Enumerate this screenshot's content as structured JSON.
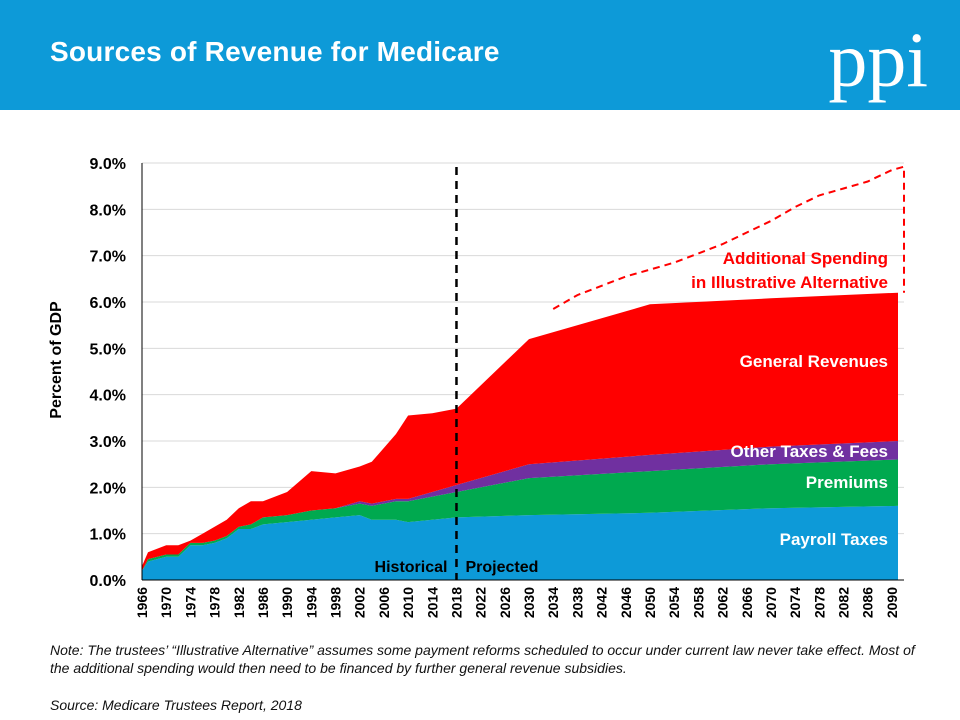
{
  "header": {
    "title": "Sources of Revenue for Medicare",
    "logo_text": "ppi"
  },
  "chart_data": {
    "type": "area",
    "stacked": true,
    "ylabel": "Percent of GDP",
    "ylim": [
      0,
      9
    ],
    "y_ticks": [
      "0.0%",
      "1.0%",
      "2.0%",
      "3.0%",
      "4.0%",
      "5.0%",
      "6.0%",
      "7.0%",
      "8.0%",
      "9.0%"
    ],
    "x_ticks": [
      "1966",
      "1970",
      "1974",
      "1978",
      "1982",
      "1986",
      "1990",
      "1994",
      "1998",
      "2002",
      "2006",
      "2010",
      "2014",
      "2018",
      "2022",
      "2026",
      "2030",
      "2034",
      "2038",
      "2042",
      "2046",
      "2050",
      "2054",
      "2058",
      "2062",
      "2066",
      "2070",
      "2074",
      "2078",
      "2082",
      "2086",
      "2090"
    ],
    "xlim": [
      1966,
      2092
    ],
    "divider_year": 2018,
    "divider_labels": {
      "left": "Historical",
      "right": "Projected"
    },
    "series": [
      {
        "name": "Payroll Taxes",
        "color": "#0d9ad8",
        "points": [
          [
            1966,
            0.2
          ],
          [
            1967,
            0.4
          ],
          [
            1970,
            0.5
          ],
          [
            1972,
            0.5
          ],
          [
            1974,
            0.75
          ],
          [
            1976,
            0.75
          ],
          [
            1978,
            0.8
          ],
          [
            1980,
            0.9
          ],
          [
            1982,
            1.1
          ],
          [
            1984,
            1.1
          ],
          [
            1986,
            1.2
          ],
          [
            1990,
            1.25
          ],
          [
            1994,
            1.3
          ],
          [
            1998,
            1.35
          ],
          [
            2002,
            1.4
          ],
          [
            2004,
            1.3
          ],
          [
            2008,
            1.3
          ],
          [
            2010,
            1.25
          ],
          [
            2014,
            1.3
          ],
          [
            2018,
            1.35
          ],
          [
            2030,
            1.4
          ],
          [
            2050,
            1.45
          ],
          [
            2070,
            1.55
          ],
          [
            2091,
            1.6
          ]
        ]
      },
      {
        "name": "Premiums",
        "color": "#00a94f",
        "points": [
          [
            1966,
            0.0
          ],
          [
            1967,
            0.05
          ],
          [
            1970,
            0.05
          ],
          [
            1972,
            0.05
          ],
          [
            1974,
            0.05
          ],
          [
            1976,
            0.05
          ],
          [
            1978,
            0.05
          ],
          [
            1980,
            0.05
          ],
          [
            1982,
            0.05
          ],
          [
            1984,
            0.1
          ],
          [
            1986,
            0.15
          ],
          [
            1990,
            0.15
          ],
          [
            1994,
            0.2
          ],
          [
            1998,
            0.2
          ],
          [
            2002,
            0.25
          ],
          [
            2004,
            0.3
          ],
          [
            2008,
            0.4
          ],
          [
            2010,
            0.45
          ],
          [
            2014,
            0.5
          ],
          [
            2018,
            0.55
          ],
          [
            2030,
            0.8
          ],
          [
            2050,
            0.9
          ],
          [
            2070,
            0.95
          ],
          [
            2091,
            1.0
          ]
        ]
      },
      {
        "name": "Other Taxes & Fees",
        "color": "#7030a0",
        "points": [
          [
            1966,
            0.0
          ],
          [
            1967,
            0.0
          ],
          [
            1970,
            0.0
          ],
          [
            1972,
            0.0
          ],
          [
            1974,
            0.0
          ],
          [
            1976,
            0.0
          ],
          [
            1978,
            0.0
          ],
          [
            1980,
            0.0
          ],
          [
            1982,
            0.0
          ],
          [
            1984,
            0.0
          ],
          [
            1986,
            0.0
          ],
          [
            1990,
            0.0
          ],
          [
            1994,
            0.0
          ],
          [
            1998,
            0.0
          ],
          [
            2002,
            0.05
          ],
          [
            2004,
            0.05
          ],
          [
            2008,
            0.05
          ],
          [
            2010,
            0.05
          ],
          [
            2014,
            0.1
          ],
          [
            2018,
            0.15
          ],
          [
            2030,
            0.3
          ],
          [
            2050,
            0.35
          ],
          [
            2070,
            0.38
          ],
          [
            2091,
            0.4
          ]
        ]
      },
      {
        "name": "General Revenues",
        "color": "#ff0000",
        "points": [
          [
            1966,
            0.1
          ],
          [
            1967,
            0.15
          ],
          [
            1970,
            0.2
          ],
          [
            1972,
            0.2
          ],
          [
            1974,
            0.05
          ],
          [
            1976,
            0.2
          ],
          [
            1978,
            0.3
          ],
          [
            1980,
            0.35
          ],
          [
            1982,
            0.4
          ],
          [
            1984,
            0.5
          ],
          [
            1986,
            0.35
          ],
          [
            1990,
            0.5
          ],
          [
            1994,
            0.85
          ],
          [
            1998,
            0.75
          ],
          [
            2002,
            0.75
          ],
          [
            2004,
            0.9
          ],
          [
            2008,
            1.4
          ],
          [
            2010,
            1.8
          ],
          [
            2014,
            1.7
          ],
          [
            2018,
            1.65
          ],
          [
            2030,
            2.7
          ],
          [
            2050,
            3.25
          ],
          [
            2070,
            3.2
          ],
          [
            2091,
            3.2
          ]
        ]
      }
    ],
    "dashed_series": {
      "name": "Additional Spending in Illustrative Alternative",
      "color": "#ff0000",
      "points": [
        [
          2034,
          5.85
        ],
        [
          2038,
          6.15
        ],
        [
          2042,
          6.35
        ],
        [
          2046,
          6.55
        ],
        [
          2050,
          6.7
        ],
        [
          2054,
          6.85
        ],
        [
          2058,
          7.05
        ],
        [
          2062,
          7.25
        ],
        [
          2066,
          7.5
        ],
        [
          2070,
          7.75
        ],
        [
          2074,
          8.05
        ],
        [
          2078,
          8.3
        ],
        [
          2082,
          8.45
        ],
        [
          2086,
          8.6
        ],
        [
          2090,
          8.85
        ],
        [
          2092,
          8.92
        ]
      ],
      "drop_to": 6.2
    },
    "series_labels": {
      "additional_line1": "Additional Spending",
      "additional_line2": "in Illustrative Alternative",
      "general": "General Revenues",
      "other": "Other Taxes & Fees",
      "premiums": "Premiums",
      "payroll": "Payroll Taxes"
    },
    "grid": true
  },
  "footer": {
    "note": "Note: The trustees’ “Illustrative Alternative” assumes some payment reforms scheduled to occur under current law never take effect. Most of the additional spending would then need to be financed by further general revenue subsidies.",
    "source": "Source: Medicare Trustees Report, 2018"
  }
}
